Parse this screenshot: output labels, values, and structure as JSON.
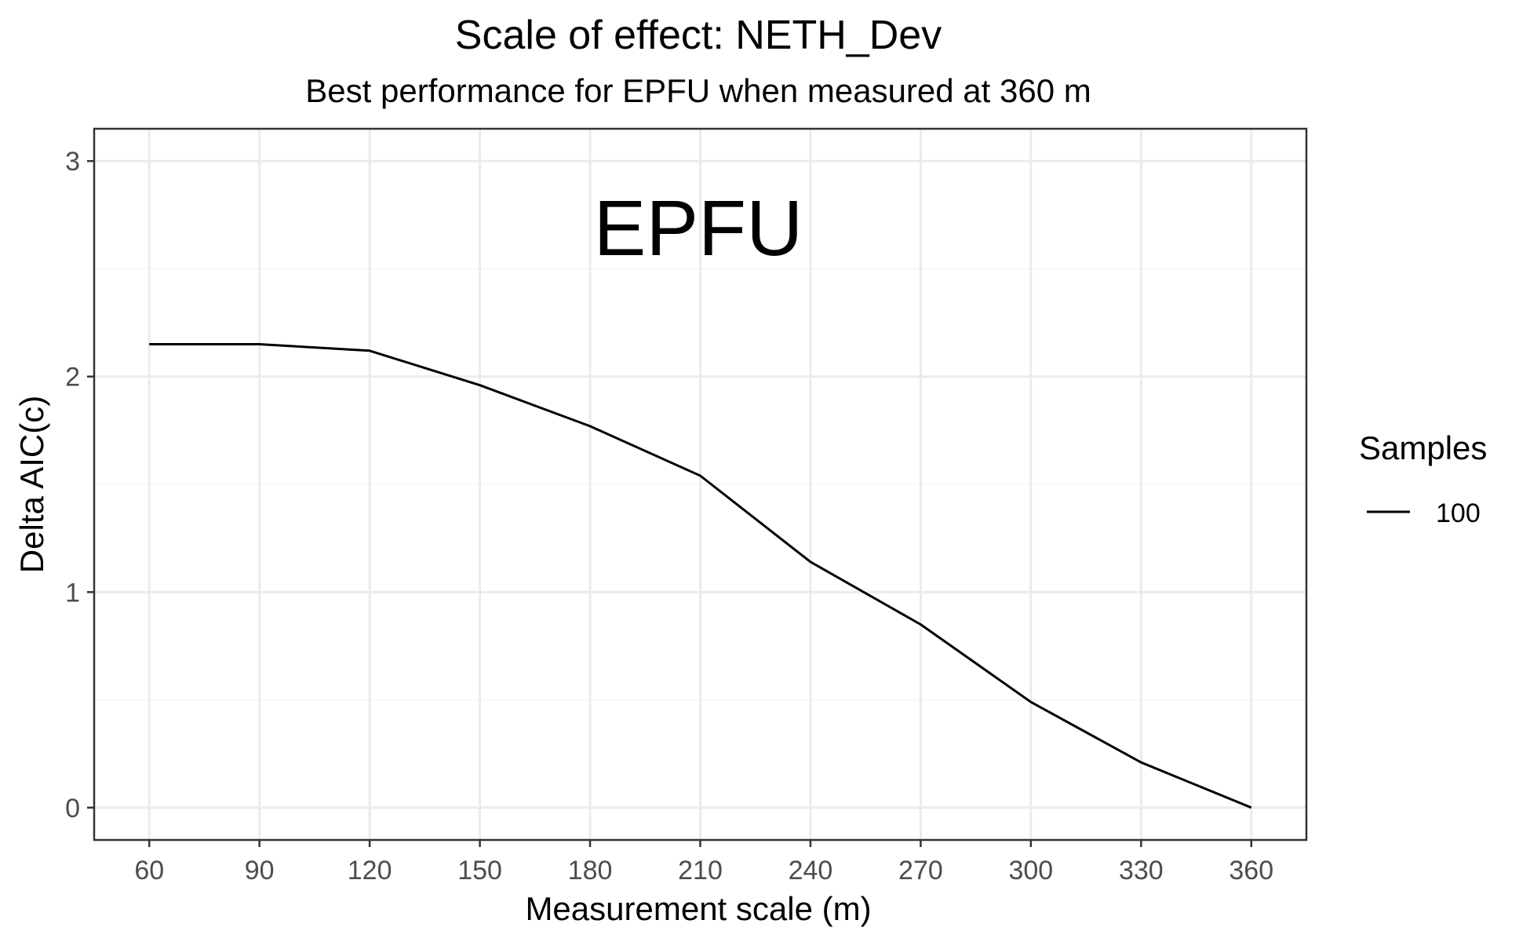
{
  "chart_data": {
    "type": "line",
    "title": "Scale of effect: NETH_Dev",
    "subtitle": "Best performance for EPFU when measured at 360 m",
    "xlabel": "Measurement scale (m)",
    "ylabel": "Delta AIC(c)",
    "annotation": "EPFU",
    "x": [
      60,
      90,
      120,
      150,
      180,
      210,
      240,
      270,
      300,
      330,
      360
    ],
    "x_ticks": [
      60,
      90,
      120,
      150,
      180,
      210,
      240,
      270,
      300,
      330,
      360
    ],
    "y_ticks": [
      0,
      1,
      2,
      3
    ],
    "xlim": [
      45,
      375
    ],
    "ylim": [
      -0.15,
      3.15
    ],
    "grid": true,
    "legend": {
      "title": "Samples",
      "position": "right"
    },
    "series": [
      {
        "name": "100",
        "color": "#000000",
        "values": [
          2.15,
          2.15,
          2.12,
          1.96,
          1.77,
          1.54,
          1.14,
          0.85,
          0.49,
          0.21,
          0.0
        ]
      }
    ]
  }
}
